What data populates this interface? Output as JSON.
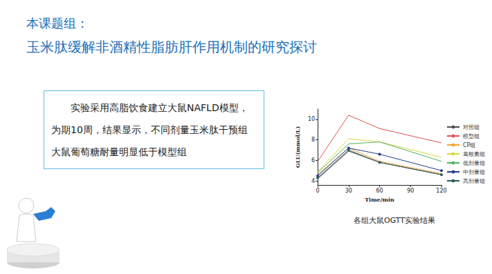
{
  "slide": {
    "title_lines": [
      "本课题组：",
      "玉米肽缓解非酒精性脂肪肝作用机制的研究探讨"
    ],
    "text_box": "实验采用高脂饮食建立大鼠NAFLD模型，为期10周，结果显示，不同剂量玉米肽干预组大鼠葡萄糖耐量明显低于模型组",
    "caption": "各组大鼠OGTT实验结果"
  },
  "chart_data": {
    "type": "line",
    "x_label": "Time/min",
    "y_label": "GLU(mmol/L)",
    "x": [
      0,
      30,
      60,
      120
    ],
    "xlim": [
      0,
      120
    ],
    "xticks": [
      0,
      30,
      60,
      90,
      120
    ],
    "ylim": [
      3.6,
      11
    ],
    "yticks": [
      4,
      6,
      8,
      10
    ],
    "grid": false,
    "legend": "right",
    "series": [
      {
        "name": "对照组",
        "color": "#4a4a4a",
        "values": [
          4.2,
          6.9,
          5.8,
          4.6
        ]
      },
      {
        "name": "模型组",
        "color": "#e05050",
        "values": [
          5.9,
          10.4,
          9.1,
          7.7
        ]
      },
      {
        "name": "CP组",
        "color": "#f0a030",
        "values": [
          4.6,
          7.2,
          5.9,
          4.7
        ]
      },
      {
        "name": "葛根素组",
        "color": "#d8d840",
        "values": [
          4.9,
          8.1,
          7.8,
          6.3
        ]
      },
      {
        "name": "低剂量组",
        "color": "#50b060",
        "values": [
          4.8,
          7.6,
          7.8,
          5.9
        ]
      },
      {
        "name": "中剂量组",
        "color": "#1f3a8a",
        "values": [
          4.5,
          7.2,
          6.6,
          5.0
        ],
        "marker": "circle"
      },
      {
        "name": "高剂量组",
        "color": "#2b5a5a",
        "values": [
          4.3,
          7.0,
          5.8,
          4.6
        ],
        "marker": "circle"
      }
    ]
  }
}
